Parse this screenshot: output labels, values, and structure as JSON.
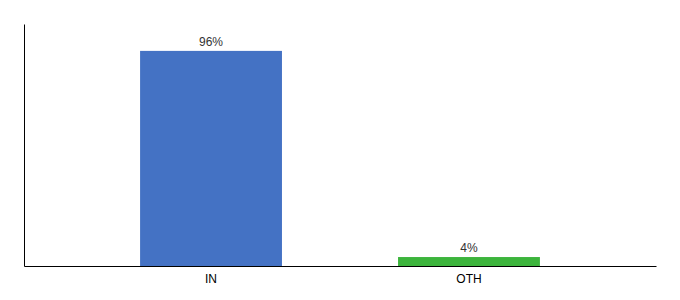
{
  "chart_data": {
    "type": "bar",
    "categories": [
      "IN",
      "OTH"
    ],
    "values": [
      96,
      4
    ],
    "value_labels": [
      "96%",
      "4%"
    ],
    "colors": [
      "#4472c4",
      "#3cb43c"
    ],
    "ylim": [
      0,
      108
    ],
    "data_labels": true,
    "tick_labels": "x"
  }
}
